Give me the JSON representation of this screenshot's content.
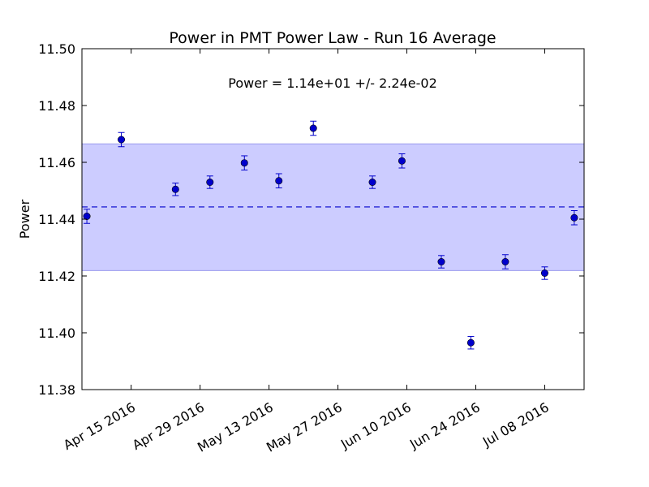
{
  "chart_data": {
    "type": "scatter",
    "title": "Power in PMT Power Law - Run 16 Average",
    "xlabel": "",
    "ylabel": "Power",
    "ylim": [
      11.38,
      11.5
    ],
    "xlim": [
      "2016-04-05",
      "2016-07-16"
    ],
    "y_ticks": [
      "11.38",
      "11.40",
      "11.42",
      "11.44",
      "11.46",
      "11.48",
      "11.50"
    ],
    "x_ticks": [
      "2016-04-15",
      "2016-04-29",
      "2016-05-13",
      "2016-05-27",
      "2016-06-10",
      "2016-06-24",
      "2016-07-08"
    ],
    "x_tick_labels": [
      "Apr 15 2016",
      "Apr 29 2016",
      "May 13 2016",
      "May 27 2016",
      "Jun 10 2016",
      "Jun 24 2016",
      "Jul 08 2016"
    ],
    "annotation": "Power = 1.14e+01 +/- 2.24e-02",
    "mean": 11.4443,
    "band": [
      11.4219,
      11.4665
    ],
    "marker_color": "#0000cc",
    "band_color": "#ccccff",
    "points": [
      {
        "x": "2016-04-06",
        "y": 11.441,
        "err": 0.0025
      },
      {
        "x": "2016-04-13",
        "y": 11.468,
        "err": 0.0025
      },
      {
        "x": "2016-04-24",
        "y": 11.4505,
        "err": 0.0022
      },
      {
        "x": "2016-05-01",
        "y": 11.453,
        "err": 0.0022
      },
      {
        "x": "2016-05-08",
        "y": 11.4598,
        "err": 0.0025
      },
      {
        "x": "2016-05-15",
        "y": 11.4535,
        "err": 0.0025
      },
      {
        "x": "2016-05-22",
        "y": 11.472,
        "err": 0.0025
      },
      {
        "x": "2016-06-03",
        "y": 11.453,
        "err": 0.0022
      },
      {
        "x": "2016-06-09",
        "y": 11.4605,
        "err": 0.0025
      },
      {
        "x": "2016-06-17",
        "y": 11.425,
        "err": 0.0022
      },
      {
        "x": "2016-06-23",
        "y": 11.3965,
        "err": 0.0022
      },
      {
        "x": "2016-06-30",
        "y": 11.425,
        "err": 0.0025
      },
      {
        "x": "2016-07-08",
        "y": 11.421,
        "err": 0.0022
      },
      {
        "x": "2016-07-14",
        "y": 11.4405,
        "err": 0.0025
      }
    ]
  }
}
